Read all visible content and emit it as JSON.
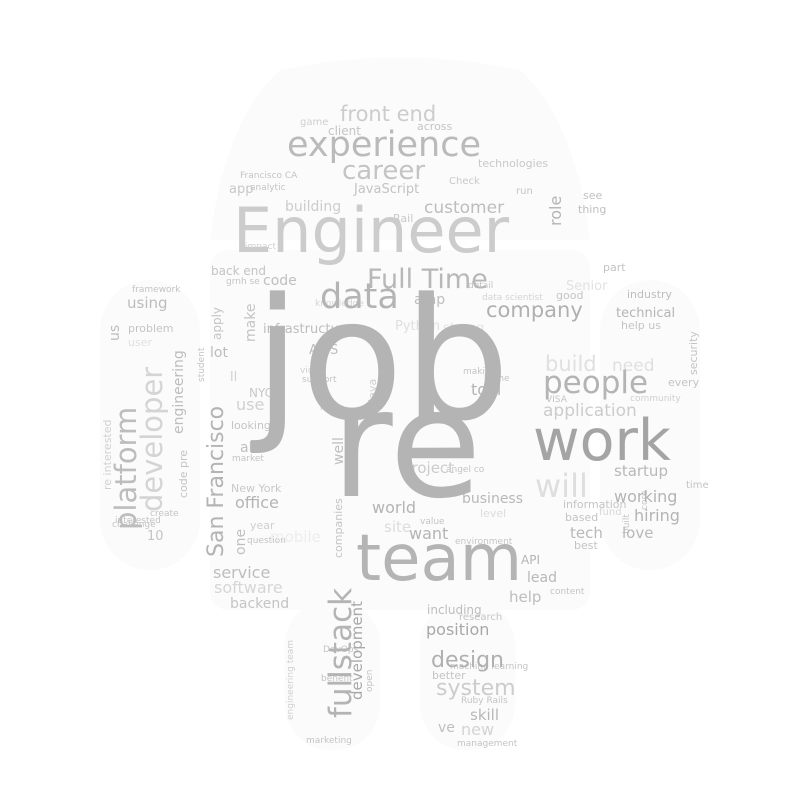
{
  "cloud": {
    "words": {
      "job": "job",
      "re": "re",
      "engineer": "Engineer",
      "work": "work",
      "team": "team",
      "experience": "experience",
      "data": "data",
      "people": "people",
      "career": "career",
      "full_time": "Full Time",
      "fullstack": "fullstack",
      "san_francisco": "San Francisco",
      "developer": "developer",
      "platform": "platform",
      "company": "company",
      "front_end": "front end",
      "customer": "customer",
      "design": "design",
      "system": "system",
      "will": "will",
      "build": "build",
      "need": "need",
      "application": "application",
      "position": "position",
      "development": "development",
      "engineering": "engineering",
      "office": "office",
      "service": "service",
      "software": "software",
      "backend": "backend",
      "world": "world",
      "want": "want",
      "working": "working",
      "hiring": "hiring",
      "startup": "startup",
      "business": "business",
      "tool": "tool",
      "love": "love",
      "tech": "tech",
      "lead": "lead",
      "help": "help",
      "project": "project",
      "new": "new",
      "skill": "skill",
      "ve": "ve",
      "role": "role",
      "technical": "technical",
      "using": "using",
      "code": "code",
      "make": "make",
      "infrastructure": "infrastructure",
      "building": "building",
      "javascript": "JavaScript",
      "app": "app",
      "amp": "amp",
      "python": "Python",
      "aws": "AWS",
      "apply": "apply",
      "lot": "lot",
      "back_end": "back end",
      "us": "us",
      "one": "one",
      "also": "also",
      "use": "use",
      "new_york": "New York",
      "nyc": "NYC",
      "looking": "looking",
      "well": "well",
      "site": "site",
      "api": "API",
      "best": "best",
      "based": "based",
      "information": "information",
      "industry": "industry",
      "help_us": "help us",
      "security": "security",
      "every": "every",
      "time": "time",
      "good": "good",
      "part": "part",
      "see": "see",
      "thing": "thing",
      "run": "run",
      "technologies": "technologies",
      "check": "Check",
      "across": "across",
      "client": "client",
      "game": "game",
      "francisco_ca": "Francisco CA",
      "analytic": "analytic",
      "rail": "Rail",
      "framework": "framework",
      "challenge": "challenge",
      "interested": "interested",
      "re_interested": "re interested",
      "code_pre": "code pre",
      "ten": "10",
      "year": "year",
      "question": "question",
      "companies": "companies",
      "designer": "designer",
      "java": "Java",
      "angel_co": "angel co",
      "value": "value",
      "environment": "environment",
      "content": "content",
      "research": "research",
      "machine_learning": "machine learning",
      "including": "including",
      "better": "better",
      "ruby_rails": "Ruby Rails",
      "management": "management",
      "marketing": "marketing",
      "devops": "DevOps",
      "benefit": "benefit",
      "making": "making",
      "home": "home",
      "visa": "VISA",
      "support": "support",
      "video": "video",
      "student": "student",
      "market": "market",
      "impact": "impact",
      "grnh_se": "grnh se",
      "detail": "detail",
      "senior": "Senior",
      "data_scientist": "data scientist",
      "strong": "strong",
      "open": "open",
      "built": "built",
      "core": "core",
      "engineering_team": "engineering team",
      "create": "create",
      "mobile": "mobile",
      "problem": "problem",
      "user": "user",
      "ll": "ll",
      "knowledge": "knowledge",
      "live": "live",
      "level": "level",
      "fund": "fund",
      "community": "community"
    }
  },
  "colors": {
    "ink_dark": "#9a9a9a",
    "ink_mid": "#b4b4b4",
    "ink_light": "#cccccc",
    "ink_faint": "#e2e2e2",
    "ink_ghost": "#efefef"
  }
}
